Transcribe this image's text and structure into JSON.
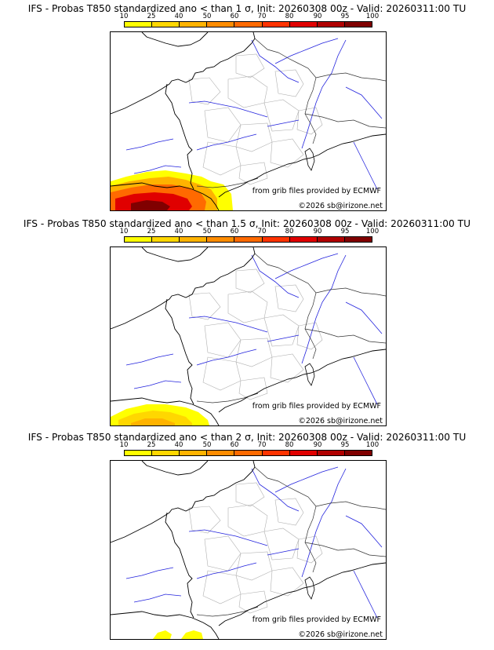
{
  "colorbar": {
    "ticks": [
      "10",
      "25",
      "40",
      "50",
      "60",
      "70",
      "80",
      "90",
      "95",
      "100"
    ],
    "colors": [
      "#ffff00",
      "#ffd700",
      "#ffb300",
      "#ff8c00",
      "#ff6a00",
      "#ff3300",
      "#e00000",
      "#b00000",
      "#800000"
    ]
  },
  "credits": {
    "grib": "from grib files provided by ECMWF",
    "copyright": "©2026 sb@irizone.net"
  },
  "panels": [
    {
      "title": "IFS - Probas T850  standardized ano < than 1 σ, Init: 20260308 00z - Valid: 20260311:00 TU",
      "sigma": "1",
      "max_probability": 100
    },
    {
      "title": "IFS - Probas T850  standardized ano < than 1.5 σ, Init: 20260308 00z - Valid: 20260311:00 TU",
      "sigma": "1.5",
      "max_probability": 50
    },
    {
      "title": "IFS - Probas T850  standardized ano < than 2 σ, Init: 20260308 00z - Valid: 20260311:00 TU",
      "sigma": "2",
      "max_probability": 25
    }
  ]
}
